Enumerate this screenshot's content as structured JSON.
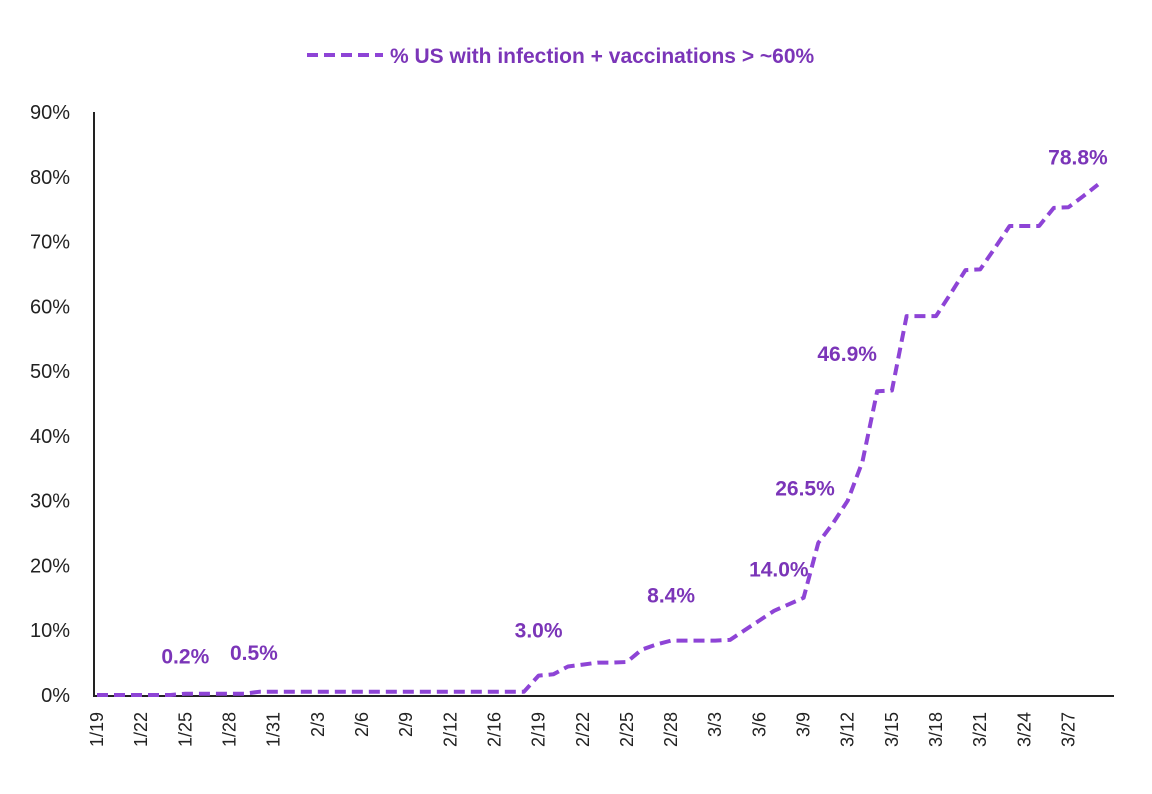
{
  "chart_data": {
    "type": "line",
    "title": "",
    "xlabel": "",
    "ylabel": "",
    "ylim": [
      0,
      90
    ],
    "y_ticks": [
      "0%",
      "10%",
      "20%",
      "30%",
      "40%",
      "50%",
      "60%",
      "70%",
      "80%",
      "90%"
    ],
    "y_tick_values": [
      0,
      10,
      20,
      30,
      40,
      50,
      60,
      70,
      80,
      90
    ],
    "x_tick_labels": [
      "1/19",
      "1/22",
      "1/25",
      "1/28",
      "1/31",
      "2/3",
      "2/6",
      "2/9",
      "2/12",
      "2/16",
      "2/19",
      "2/22",
      "2/25",
      "2/28",
      "3/3",
      "3/6",
      "3/9",
      "3/12",
      "3/15",
      "3/18",
      "3/21",
      "3/24",
      "3/27"
    ],
    "x_tick_day_index": [
      0,
      3,
      6,
      9,
      12,
      15,
      18,
      21,
      24,
      27,
      30,
      33,
      36,
      39,
      42,
      45,
      48,
      51,
      54,
      57,
      60,
      63,
      66
    ],
    "grid": false,
    "legend": {
      "position": "top-center",
      "entries": [
        "% US with infection + vaccinations > ~60%"
      ]
    },
    "colors": {
      "series": "#8e44d6",
      "label": "#7b35b8",
      "axis": "#222222"
    },
    "series": [
      {
        "name": "% US with infection + vaccinations > ~60%",
        "style": "dashed",
        "x_start": "1/19",
        "values": [
          0.0,
          0.0,
          0.0,
          0.0,
          0.0,
          0.0,
          0.2,
          0.2,
          0.2,
          0.2,
          0.2,
          0.5,
          0.5,
          0.5,
          0.5,
          0.5,
          0.5,
          0.5,
          0.5,
          0.5,
          0.5,
          0.5,
          0.5,
          0.5,
          0.5,
          0.5,
          0.5,
          0.5,
          0.5,
          0.5,
          3.0,
          3.2,
          4.4,
          4.7,
          5.0,
          5.0,
          5.1,
          7.0,
          7.8,
          8.4,
          8.4,
          8.4,
          8.4,
          8.5,
          10.0,
          11.5,
          13.0,
          14.0,
          15.0,
          23.5,
          26.5,
          30.0,
          36.0,
          46.9,
          47.0,
          58.5,
          58.5,
          58.5,
          62.0,
          65.6,
          65.7,
          69.0,
          72.4,
          72.4,
          72.4,
          75.2,
          75.3,
          77.0,
          78.8
        ]
      }
    ],
    "annotations": [
      {
        "text": "0.2%",
        "day_index": 6,
        "value": 0.2
      },
      {
        "text": "0.5%",
        "day_index": 11,
        "value": 0.5
      },
      {
        "text": "3.0%",
        "day_index": 30,
        "value": 3.0
      },
      {
        "text": "8.4%",
        "day_index": 39,
        "value": 8.4
      },
      {
        "text": "14.0%",
        "day_index": 47,
        "value": 14.0
      },
      {
        "text": "26.5%",
        "day_index": 50,
        "value": 26.5
      },
      {
        "text": "46.9%",
        "day_index": 53,
        "value": 46.9
      },
      {
        "text": "78.8%",
        "day_index": 68,
        "value": 78.8
      }
    ]
  }
}
